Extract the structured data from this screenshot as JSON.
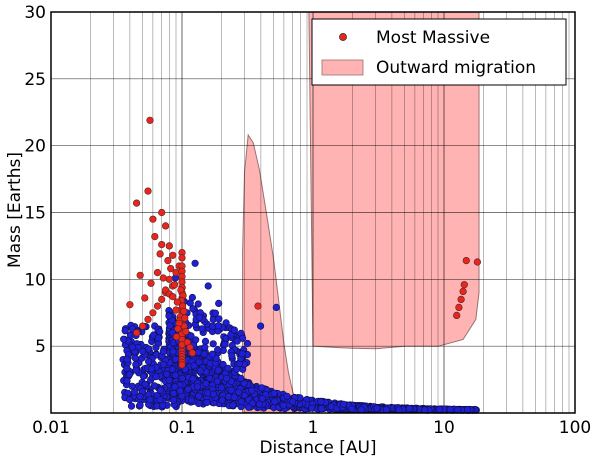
{
  "chart_data": {
    "type": "scatter",
    "xlabel": "Distance [AU]",
    "ylabel": "Mass [Earths]",
    "xscale": "log",
    "xlim": [
      0.01,
      100
    ],
    "ylim": [
      0,
      30
    ],
    "x_ticks": [
      0.01,
      0.1,
      1,
      10,
      100
    ],
    "x_tick_labels": [
      "0.01",
      "0.1",
      "1",
      "10",
      "100"
    ],
    "y_ticks": [
      5,
      10,
      15,
      20,
      25,
      30
    ],
    "y_tick_labels": [
      "5",
      "10",
      "15",
      "20",
      "25",
      "30"
    ],
    "grid": true,
    "legend_position": "top-right",
    "legend": [
      {
        "label": "Most Massive",
        "kind": "marker",
        "color": "#e8261e"
      },
      {
        "label": "Outward migration",
        "kind": "patch",
        "color": "#ffb3b3"
      }
    ],
    "colors": {
      "most_massive": "#e8261e",
      "population": "#1f1fd6",
      "migration_fill": "#ffb3b3",
      "migration_edge": "#9b7070"
    },
    "migration_regions": [
      {
        "name": "Outward migration",
        "polygon": [
          [
            0.29,
            0.05
          ],
          [
            0.29,
            12
          ],
          [
            0.3,
            18
          ],
          [
            0.32,
            20.8
          ],
          [
            0.35,
            20.2
          ],
          [
            0.39,
            18.2
          ],
          [
            0.44,
            15
          ],
          [
            0.5,
            11.5
          ],
          [
            0.55,
            8.2
          ],
          [
            0.6,
            5.2
          ],
          [
            0.65,
            3
          ],
          [
            0.7,
            1.6
          ],
          [
            0.75,
            0.8
          ],
          [
            0.8,
            0.3
          ],
          [
            0.85,
            0.05
          ]
        ]
      },
      {
        "name": "Outward migration",
        "polygon": [
          [
            1.0,
            5
          ],
          [
            0.93,
            30
          ],
          [
            18.5,
            30
          ],
          [
            18.5,
            9
          ],
          [
            17.5,
            7
          ],
          [
            14,
            5.5
          ],
          [
            9,
            5
          ],
          [
            5,
            5
          ],
          [
            3,
            4.8
          ],
          [
            2,
            4.85
          ],
          [
            1.5,
            4.9
          ]
        ]
      }
    ],
    "series": [
      {
        "name": "Most Massive",
        "marker": "circle",
        "color": "#e8261e",
        "x": [
          0.057,
          0.045,
          0.055,
          0.07,
          0.075,
          0.06,
          0.08,
          0.085,
          0.09,
          0.095,
          0.1,
          0.1,
          0.1,
          0.1,
          0.1,
          0.1,
          0.1,
          0.1,
          0.1,
          0.1,
          0.1,
          0.1,
          0.1,
          0.1,
          0.1,
          0.1,
          0.1,
          0.1,
          0.1,
          0.1,
          0.1,
          0.1,
          0.1,
          0.1,
          0.1,
          0.1,
          0.1,
          0.1,
          0.1,
          0.1,
          0.098,
          0.102,
          0.099,
          0.101,
          0.103,
          0.097,
          0.096,
          0.104,
          0.1,
          0.1,
          0.1,
          0.08,
          0.085,
          0.075,
          0.07,
          0.065,
          0.06,
          0.055,
          0.05,
          0.045,
          0.04,
          0.065,
          0.07,
          0.075,
          0.08,
          0.085,
          0.09,
          0.078,
          0.082,
          0.088,
          0.092,
          0.062,
          0.068,
          0.072,
          0.058,
          0.052,
          0.048,
          0.095,
          0.093,
          0.091,
          0.105,
          0.107,
          0.11,
          0.115,
          0.12,
          12.5,
          13,
          13.5,
          14,
          14.3,
          14.8,
          18,
          0.38
        ],
        "y": [
          21.9,
          15.7,
          16.6,
          15.0,
          14.0,
          14.5,
          12.5,
          11.8,
          10.5,
          11.0,
          11.0,
          10.6,
          10.2,
          9.8,
          9.4,
          9.0,
          8.6,
          8.2,
          7.8,
          7.4,
          7.0,
          6.8,
          6.6,
          6.4,
          6.2,
          6.0,
          5.8,
          5.6,
          5.4,
          5.2,
          5.0,
          4.8,
          4.6,
          4.4,
          4.2,
          4.0,
          3.8,
          3.6,
          12.0,
          11.6,
          9.2,
          8.8,
          8.4,
          8.0,
          7.6,
          7.2,
          6.9,
          6.5,
          5.9,
          5.5,
          5.1,
          10.0,
          9.5,
          9.0,
          8.5,
          8.0,
          7.5,
          7.0,
          6.5,
          6.0,
          8.1,
          10.5,
          12.6,
          9.2,
          8.9,
          8.7,
          7.7,
          11.4,
          10.8,
          9.6,
          8.3,
          13.2,
          11.9,
          10.1,
          9.7,
          8.6,
          10.3,
          6.7,
          6.3,
          5.7,
          7.1,
          6.1,
          5.3,
          4.9,
          4.5,
          7.3,
          7.9,
          8.5,
          9.1,
          9.6,
          11.4,
          11.3,
          8.0
        ]
      }
    ]
  }
}
